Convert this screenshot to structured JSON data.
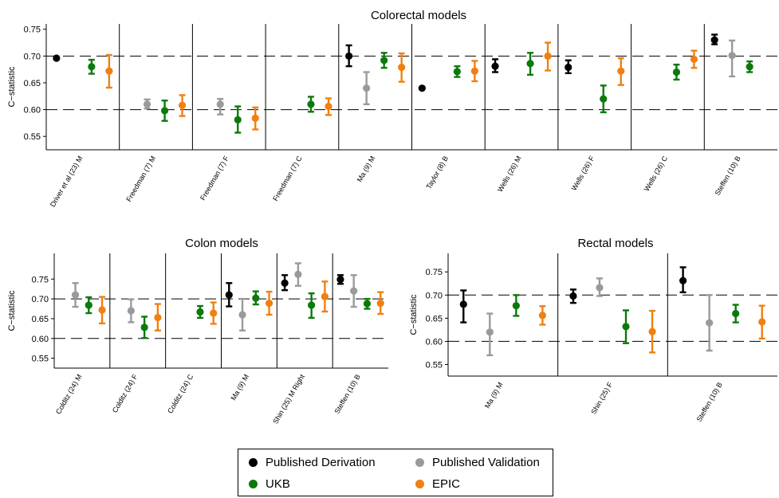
{
  "colors": {
    "Published Derivation": "#000000",
    "Published Validation": "#9a9a9a",
    "UKB": "#0a7a0a",
    "EPIC": "#f08010"
  },
  "legend": {
    "items": [
      {
        "label": "Published Derivation",
        "color": "#000000"
      },
      {
        "label": "Published Validation",
        "color": "#9a9a9a"
      },
      {
        "label": "UKB",
        "color": "#0a7a0a"
      },
      {
        "label": "EPIC",
        "color": "#f08010"
      }
    ]
  },
  "chart_data": [
    {
      "type": "scatter",
      "subtype": "point-range",
      "title": "Colorectal models",
      "ylabel": "C−statistic",
      "ylim": [
        0.525,
        0.76
      ],
      "yticks": [
        "0.55",
        "0.60",
        "0.65",
        "0.70",
        "0.75"
      ],
      "reference_lines": [
        0.6,
        0.7
      ],
      "legend": "bottom",
      "categories": [
        {
          "name": "Driver et al (23) M",
          "points": [
            {
              "series": "Published Derivation",
              "y": 0.696,
              "lo": 0.696,
              "hi": 0.696
            },
            {
              "series": "UKB",
              "y": 0.68,
              "lo": 0.667,
              "hi": 0.693
            },
            {
              "series": "EPIC",
              "y": 0.672,
              "lo": 0.641,
              "hi": 0.702
            }
          ]
        },
        {
          "name": "Freedman (7) M",
          "points": [
            {
              "series": "Published Validation",
              "y": 0.61,
              "lo": 0.602,
              "hi": 0.619
            },
            {
              "series": "UKB",
              "y": 0.598,
              "lo": 0.579,
              "hi": 0.617
            },
            {
              "series": "EPIC",
              "y": 0.608,
              "lo": 0.588,
              "hi": 0.627
            }
          ]
        },
        {
          "name": "Freedman (7) F",
          "points": [
            {
              "series": "Published Validation",
              "y": 0.61,
              "lo": 0.591,
              "hi": 0.62
            },
            {
              "series": "UKB",
              "y": 0.581,
              "lo": 0.557,
              "hi": 0.606
            },
            {
              "series": "EPIC",
              "y": 0.584,
              "lo": 0.563,
              "hi": 0.604
            }
          ]
        },
        {
          "name": "Freedman (7) C",
          "points": [
            {
              "series": "UKB",
              "y": 0.61,
              "lo": 0.596,
              "hi": 0.624
            },
            {
              "series": "EPIC",
              "y": 0.606,
              "lo": 0.59,
              "hi": 0.621
            }
          ]
        },
        {
          "name": "Ma (9) M",
          "points": [
            {
              "series": "Published Derivation",
              "y": 0.7,
              "lo": 0.681,
              "hi": 0.72
            },
            {
              "series": "Published Validation",
              "y": 0.64,
              "lo": 0.61,
              "hi": 0.67
            },
            {
              "series": "UKB",
              "y": 0.692,
              "lo": 0.678,
              "hi": 0.706
            },
            {
              "series": "EPIC",
              "y": 0.679,
              "lo": 0.652,
              "hi": 0.705
            }
          ]
        },
        {
          "name": "Taylor (8) B",
          "points": [
            {
              "series": "Published Derivation",
              "y": 0.64,
              "lo": 0.64,
              "hi": 0.64
            },
            {
              "series": "UKB",
              "y": 0.671,
              "lo": 0.661,
              "hi": 0.681
            },
            {
              "series": "EPIC",
              "y": 0.672,
              "lo": 0.653,
              "hi": 0.691
            }
          ]
        },
        {
          "name": "Wells (26) M",
          "points": [
            {
              "series": "Published Derivation",
              "y": 0.681,
              "lo": 0.67,
              "hi": 0.694
            },
            {
              "series": "UKB",
              "y": 0.686,
              "lo": 0.665,
              "hi": 0.706
            },
            {
              "series": "EPIC",
              "y": 0.7,
              "lo": 0.673,
              "hi": 0.725
            }
          ]
        },
        {
          "name": "Wells (26) F",
          "points": [
            {
              "series": "Published Derivation",
              "y": 0.679,
              "lo": 0.668,
              "hi": 0.692
            },
            {
              "series": "UKB",
              "y": 0.62,
              "lo": 0.595,
              "hi": 0.645
            },
            {
              "series": "EPIC",
              "y": 0.672,
              "lo": 0.646,
              "hi": 0.696
            }
          ]
        },
        {
          "name": "Wells (26) C",
          "points": [
            {
              "series": "UKB",
              "y": 0.67,
              "lo": 0.656,
              "hi": 0.684
            },
            {
              "series": "EPIC",
              "y": 0.694,
              "lo": 0.678,
              "hi": 0.71
            }
          ]
        },
        {
          "name": "Steffen (10) B",
          "points": [
            {
              "series": "Published Derivation",
              "y": 0.73,
              "lo": 0.722,
              "hi": 0.74
            },
            {
              "series": "Published Validation",
              "y": 0.701,
              "lo": 0.662,
              "hi": 0.729
            },
            {
              "series": "UKB",
              "y": 0.68,
              "lo": 0.67,
              "hi": 0.69
            }
          ]
        }
      ]
    },
    {
      "type": "scatter",
      "subtype": "point-range",
      "title": "Colon models",
      "ylabel": "C−statistic",
      "ylim": [
        0.525,
        0.815
      ],
      "yticks": [
        "0.55",
        "0.60",
        "0.65",
        "0.70",
        "0.75"
      ],
      "reference_lines": [
        0.6,
        0.7
      ],
      "legend": "bottom",
      "categories": [
        {
          "name": "Colditz (24) M",
          "points": [
            {
              "series": "Published Validation",
              "y": 0.71,
              "lo": 0.68,
              "hi": 0.74
            },
            {
              "series": "UKB",
              "y": 0.684,
              "lo": 0.664,
              "hi": 0.704
            },
            {
              "series": "EPIC",
              "y": 0.672,
              "lo": 0.638,
              "hi": 0.705
            }
          ]
        },
        {
          "name": "Colditz (24) F",
          "points": [
            {
              "series": "Published Validation",
              "y": 0.67,
              "lo": 0.641,
              "hi": 0.699
            },
            {
              "series": "UKB",
              "y": 0.628,
              "lo": 0.601,
              "hi": 0.655
            },
            {
              "series": "EPIC",
              "y": 0.653,
              "lo": 0.62,
              "hi": 0.687
            }
          ]
        },
        {
          "name": "Colditz (24) C",
          "points": [
            {
              "series": "UKB",
              "y": 0.667,
              "lo": 0.652,
              "hi": 0.682
            },
            {
              "series": "EPIC",
              "y": 0.664,
              "lo": 0.637,
              "hi": 0.691
            }
          ]
        },
        {
          "name": "Ma (9) M",
          "points": [
            {
              "series": "Published Derivation",
              "y": 0.71,
              "lo": 0.681,
              "hi": 0.74
            },
            {
              "series": "Published Validation",
              "y": 0.66,
              "lo": 0.62,
              "hi": 0.7
            },
            {
              "series": "UKB",
              "y": 0.702,
              "lo": 0.686,
              "hi": 0.719
            },
            {
              "series": "EPIC",
              "y": 0.689,
              "lo": 0.66,
              "hi": 0.718
            }
          ]
        },
        {
          "name": "Shin (25) M Right",
          "points": [
            {
              "series": "Published Derivation",
              "y": 0.74,
              "lo": 0.722,
              "hi": 0.76
            },
            {
              "series": "Published Validation",
              "y": 0.762,
              "lo": 0.733,
              "hi": 0.79
            },
            {
              "series": "UKB",
              "y": 0.684,
              "lo": 0.652,
              "hi": 0.714
            },
            {
              "series": "EPIC",
              "y": 0.706,
              "lo": 0.668,
              "hi": 0.744
            }
          ]
        },
        {
          "name": "Steffen (10) B",
          "points": [
            {
              "series": "Published Derivation",
              "y": 0.749,
              "lo": 0.738,
              "hi": 0.76
            },
            {
              "series": "Published Validation",
              "y": 0.72,
              "lo": 0.68,
              "hi": 0.76
            },
            {
              "series": "UKB",
              "y": 0.688,
              "lo": 0.675,
              "hi": 0.7
            },
            {
              "series": "EPIC",
              "y": 0.689,
              "lo": 0.662,
              "hi": 0.717
            }
          ]
        }
      ]
    },
    {
      "type": "scatter",
      "subtype": "point-range",
      "title": "Rectal models",
      "ylabel": "C−statistic",
      "ylim": [
        0.525,
        0.79
      ],
      "yticks": [
        "0.55",
        "0.60",
        "0.65",
        "0.70",
        "0.75"
      ],
      "reference_lines": [
        0.6,
        0.7
      ],
      "legend": "bottom",
      "categories": [
        {
          "name": "Ma (9) M",
          "points": [
            {
              "series": "Published Derivation",
              "y": 0.68,
              "lo": 0.641,
              "hi": 0.71
            },
            {
              "series": "Published Validation",
              "y": 0.62,
              "lo": 0.57,
              "hi": 0.66
            },
            {
              "series": "UKB",
              "y": 0.677,
              "lo": 0.655,
              "hi": 0.7
            },
            {
              "series": "EPIC",
              "y": 0.656,
              "lo": 0.636,
              "hi": 0.676
            }
          ]
        },
        {
          "name": "Shin (25) F",
          "points": [
            {
              "series": "Published Derivation",
              "y": 0.698,
              "lo": 0.683,
              "hi": 0.712
            },
            {
              "series": "Published Validation",
              "y": 0.716,
              "lo": 0.698,
              "hi": 0.736
            },
            {
              "series": "UKB",
              "y": 0.632,
              "lo": 0.596,
              "hi": 0.667
            },
            {
              "series": "EPIC",
              "y": 0.621,
              "lo": 0.576,
              "hi": 0.666
            }
          ]
        },
        {
          "name": "Steffen (10) B",
          "points": [
            {
              "series": "Published Derivation",
              "y": 0.731,
              "lo": 0.706,
              "hi": 0.76
            },
            {
              "series": "Published Validation",
              "y": 0.64,
              "lo": 0.58,
              "hi": 0.7
            },
            {
              "series": "UKB",
              "y": 0.66,
              "lo": 0.641,
              "hi": 0.679
            },
            {
              "series": "EPIC",
              "y": 0.642,
              "lo": 0.606,
              "hi": 0.677
            }
          ]
        }
      ]
    }
  ]
}
